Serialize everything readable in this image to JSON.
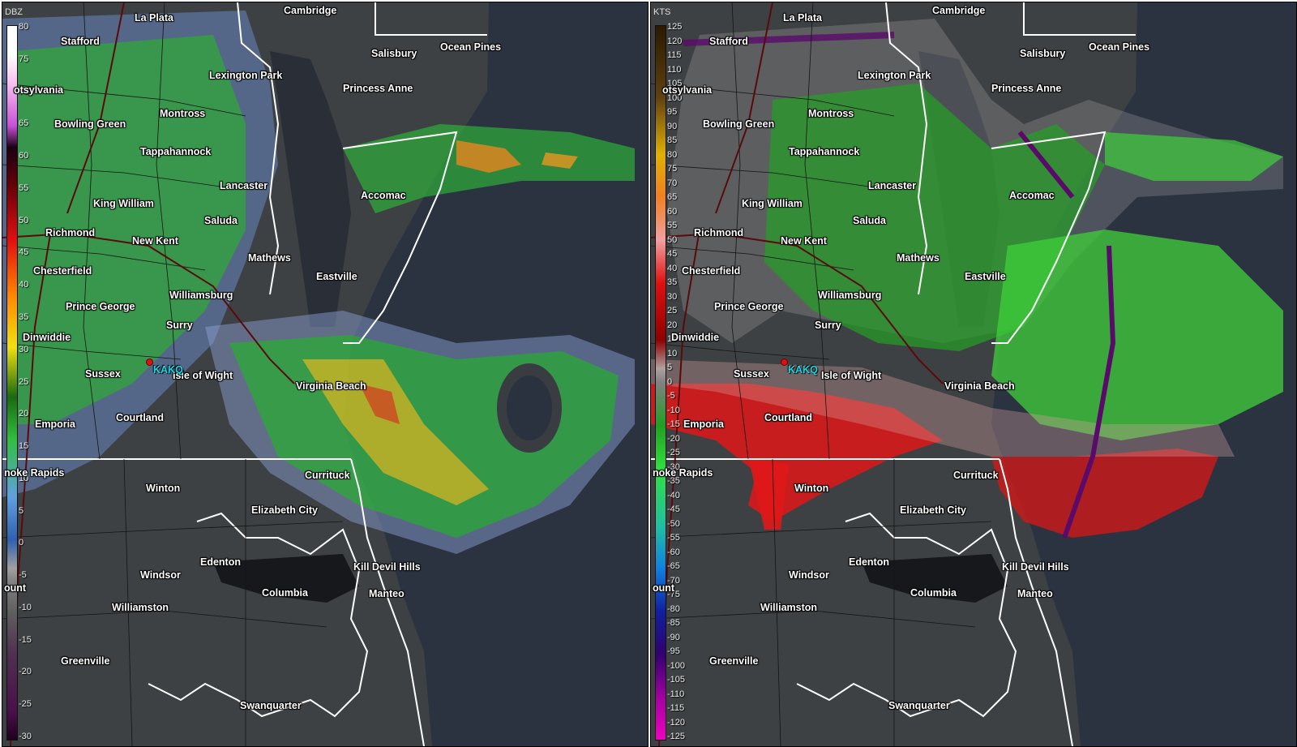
{
  "panels": [
    {
      "id": "reflectivity",
      "unit": "DBZ",
      "site": "KAKQ",
      "colorbar": [
        "80",
        "75",
        "70",
        "65",
        "60",
        "55",
        "50",
        "45",
        "40",
        "35",
        "30",
        "25",
        "20",
        "15",
        "10",
        "5",
        "0",
        "-5",
        "-10",
        "-15",
        "-20",
        "-25",
        "-30"
      ]
    },
    {
      "id": "velocity",
      "unit": "KTS",
      "site": "KAKQ",
      "colorbar": [
        "125",
        "120",
        "115",
        "110",
        "105",
        "100",
        "95",
        "90",
        "85",
        "80",
        "75",
        "70",
        "65",
        "60",
        "55",
        "50",
        "45",
        "40",
        "35",
        "30",
        "25",
        "20",
        "15",
        "10",
        "5",
        "0",
        "-5",
        "-10",
        "-15",
        "-20",
        "-25",
        "-30",
        "-35",
        "-40",
        "-45",
        "-50",
        "-55",
        "-60",
        "-65",
        "-70",
        "-75",
        "-80",
        "-85",
        "-90",
        "-95",
        "-100",
        "-105",
        "-110",
        "-115",
        "-120",
        "-125"
      ]
    }
  ],
  "cities": [
    "La Plata",
    "Cambridge",
    "Stafford",
    "Salisbury",
    "Ocean Pines",
    "Lexington Park",
    "otsylvania",
    "Princess Anne",
    "Montross",
    "Bowling Green",
    "Tappahannock",
    "Lancaster",
    "Accomac",
    "King William",
    "Saluda",
    "Richmond",
    "New Kent",
    "Mathews",
    "Chesterfield",
    "Eastville",
    "Williamsburg",
    "Prince George",
    "Surry",
    "Dinwiddie",
    "Sussex",
    "Isle of Wight",
    "Virginia Beach",
    "Emporia",
    "Courtland",
    "noke Rapids",
    "Currituck",
    "Winton",
    "Elizabeth City",
    "Edenton",
    "Kill Devil Hills",
    "Windsor",
    "Columbia",
    "ount",
    "Manteo",
    "Williamston",
    "Greenville",
    "Swanquarter"
  ],
  "colors": {
    "land": "#3a3d40",
    "water": "#2c3340",
    "state_lines": "#ffffff",
    "county_lines": "#1a1a1a",
    "highways": "#5a0a0a",
    "site_label": "#19d8e6"
  }
}
